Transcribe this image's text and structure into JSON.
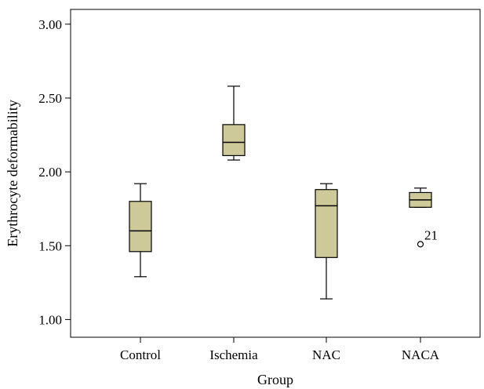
{
  "chart_data": {
    "type": "boxplot",
    "xlabel": "Group",
    "ylabel": "Erythrocyte deformability",
    "ylim": [
      0.88,
      3.1
    ],
    "yticks": [
      1.0,
      1.5,
      2.0,
      2.5,
      3.0
    ],
    "ytick_labels": [
      "1.00",
      "1.50",
      "2.00",
      "2.50",
      "3.00"
    ],
    "grid": false,
    "box_color": "#cdc998",
    "categories": [
      "Control",
      "Ischemia",
      "NAC",
      "NACA"
    ],
    "boxes": [
      {
        "category": "Control",
        "min": 1.29,
        "q1": 1.46,
        "median": 1.6,
        "q3": 1.8,
        "max": 1.92,
        "outliers": []
      },
      {
        "category": "Ischemia",
        "min": 2.08,
        "q1": 2.11,
        "median": 2.2,
        "q3": 2.32,
        "max": 2.58,
        "outliers": []
      },
      {
        "category": "NAC",
        "min": 1.14,
        "q1": 1.42,
        "median": 1.77,
        "q3": 1.88,
        "max": 1.92,
        "outliers": []
      },
      {
        "category": "NACA",
        "min": 1.76,
        "q1": 1.76,
        "median": 1.81,
        "q3": 1.86,
        "max": 1.89,
        "outliers": [
          {
            "value": 1.51,
            "label": "21"
          }
        ]
      }
    ]
  }
}
